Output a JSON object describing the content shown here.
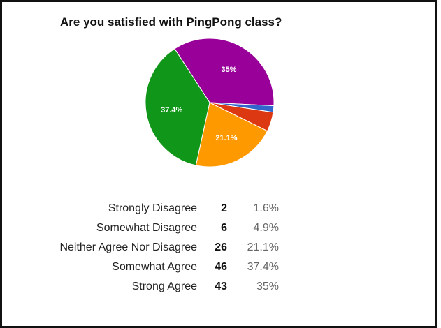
{
  "chart_data": {
    "type": "pie",
    "title": "Are you satisfied with PingPong class?",
    "slices": [
      {
        "label": "Strong Agree",
        "value": 43,
        "percent": "35%",
        "slice_label": "35%",
        "color": "#990099"
      },
      {
        "label": "Strongly Disagree",
        "value": 2,
        "percent": "1.6%",
        "slice_label": "",
        "color": "#3366cc"
      },
      {
        "label": "Somewhat Disagree",
        "value": 6,
        "percent": "4.9%",
        "slice_label": "",
        "color": "#dc3912"
      },
      {
        "label": "Neither Agree Nor Disagree",
        "value": 26,
        "percent": "21.1%",
        "slice_label": "21.1%",
        "color": "#ff9900"
      },
      {
        "label": "Somewhat Agree",
        "value": 46,
        "percent": "37.4%",
        "slice_label": "37.4%",
        "color": "#109618"
      }
    ]
  },
  "table": {
    "rows": [
      {
        "label": "Strongly Disagree",
        "count": "2",
        "percent": "1.6%"
      },
      {
        "label": "Somewhat Disagree",
        "count": "6",
        "percent": "4.9%"
      },
      {
        "label": "Neither Agree Nor Disagree",
        "count": "26",
        "percent": "21.1%"
      },
      {
        "label": "Somewhat Agree",
        "count": "46",
        "percent": "37.4%"
      },
      {
        "label": "Strong Agree",
        "count": "43",
        "percent": "35%"
      }
    ]
  }
}
